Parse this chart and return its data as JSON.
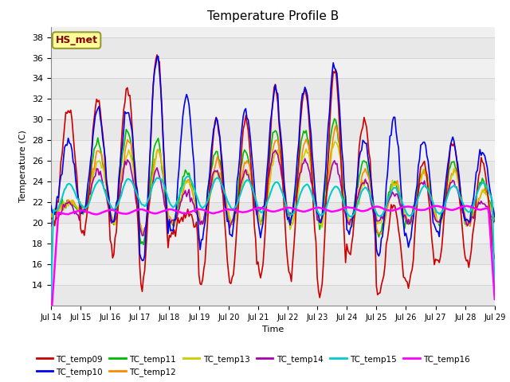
{
  "title": "Temperature Profile B",
  "xlabel": "Time",
  "ylabel": "Temperature (C)",
  "ylim": [
    12,
    39
  ],
  "xlim": [
    0,
    360
  ],
  "annotation_text": "HS_met",
  "annotation_color": "#8B0000",
  "annotation_bg": "#FFFF99",
  "annotation_border": "#999933",
  "x_tick_labels": [
    "Jul 14",
    "Jul 15",
    "Jul 16",
    "Jul 17",
    "Jul 18",
    "Jul 19",
    "Jul 20",
    "Jul 21",
    "Jul 22",
    "Jul 23",
    "Jul 24",
    "Jul 25",
    "Jul 26",
    "Jul 27",
    "Jul 28",
    "Jul 29"
  ],
  "x_tick_positions": [
    0,
    24,
    48,
    72,
    96,
    120,
    144,
    168,
    192,
    216,
    240,
    264,
    288,
    312,
    336,
    360
  ],
  "series_colors": {
    "TC_temp09": "#CC0000",
    "TC_temp10": "#0000EE",
    "TC_temp11": "#00BB00",
    "TC_temp12": "#FF8800",
    "TC_temp13": "#CCCC00",
    "TC_temp14": "#AA00AA",
    "TC_temp15": "#00CCCC",
    "TC_temp16": "#FF00FF"
  },
  "bg_band_colors": [
    "#E8E8E8",
    "#F0F0F0"
  ],
  "grid_color": "#CCCCCC"
}
